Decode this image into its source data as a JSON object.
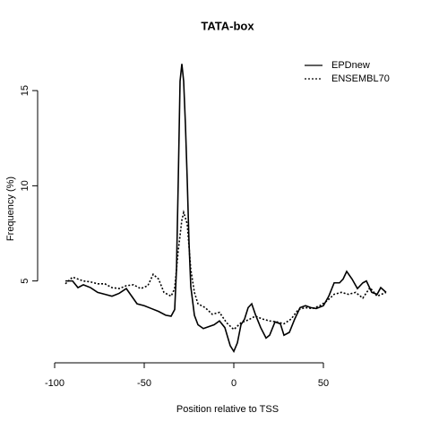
{
  "chart_data": {
    "type": "line",
    "title": "TATA-box",
    "xlabel": "Position relative to TSS",
    "ylabel": "Frequency (%)",
    "xlim": [
      -109.5,
      97
    ],
    "ylim": [
      0.7,
      16.7
    ],
    "xticks": [
      -100,
      -50,
      0,
      50
    ],
    "yticks": [
      5,
      10,
      15
    ],
    "legend": "top-right",
    "series": [
      {
        "name": "EPDnew",
        "color": "#000000",
        "linestyle": "solid",
        "x": [
          -94,
          -90,
          -87,
          -84,
          -80,
          -76,
          -72,
          -68,
          -64,
          -60,
          -57,
          -54,
          -50,
          -46,
          -42,
          -38,
          -35,
          -33,
          -32,
          -31,
          -30,
          -29,
          -28,
          -27,
          -26,
          -25,
          -24,
          -22,
          -20,
          -17,
          -14,
          -11,
          -8,
          -5,
          -2,
          0,
          2,
          4,
          6,
          8,
          10,
          12,
          15,
          18,
          20,
          23,
          26,
          28,
          31,
          34,
          37,
          40,
          43,
          46,
          50,
          53,
          56,
          59,
          61,
          63,
          66,
          69,
          72,
          74,
          77,
          80,
          82,
          85
        ],
        "values": [
          5.0,
          5.0,
          4.65,
          4.8,
          4.65,
          4.4,
          4.3,
          4.2,
          4.35,
          4.6,
          4.2,
          3.8,
          3.7,
          3.55,
          3.4,
          3.2,
          3.15,
          3.5,
          5.6,
          10.3,
          15.5,
          16.4,
          15.5,
          13.2,
          10.3,
          7.0,
          4.7,
          3.2,
          2.7,
          2.5,
          2.6,
          2.7,
          2.9,
          2.55,
          1.6,
          1.3,
          1.75,
          2.7,
          3.0,
          3.6,
          3.8,
          3.25,
          2.55,
          2.0,
          2.15,
          2.85,
          2.75,
          2.15,
          2.3,
          3.0,
          3.6,
          3.7,
          3.6,
          3.55,
          3.7,
          4.2,
          4.9,
          4.9,
          5.1,
          5.5,
          5.1,
          4.6,
          4.9,
          5.0,
          4.4,
          4.3,
          4.65,
          4.4
        ]
      },
      {
        "name": "ENSEMBL70",
        "color": "#000000",
        "linestyle": "dotted",
        "x": [
          -94,
          -90,
          -87,
          -84,
          -80,
          -76,
          -72,
          -68,
          -64,
          -60,
          -56,
          -52,
          -48,
          -45,
          -42,
          -39,
          -35,
          -33,
          -31,
          -29,
          -28,
          -26,
          -24,
          -22,
          -20,
          -16,
          -12,
          -8,
          -4,
          0,
          4,
          8,
          12,
          16,
          20,
          24,
          28,
          32,
          36,
          40,
          44,
          48,
          52,
          56,
          60,
          64,
          68,
          72,
          76,
          80,
          85
        ],
        "values": [
          4.85,
          5.2,
          5.1,
          5.0,
          4.95,
          4.85,
          4.85,
          4.65,
          4.6,
          4.75,
          4.8,
          4.6,
          4.75,
          5.35,
          5.1,
          4.4,
          4.2,
          4.6,
          6.6,
          8.2,
          8.6,
          8.0,
          5.6,
          4.4,
          3.8,
          3.6,
          3.25,
          3.35,
          2.8,
          2.45,
          2.8,
          2.95,
          3.15,
          3.0,
          2.9,
          2.85,
          2.75,
          3.0,
          3.5,
          3.6,
          3.55,
          3.7,
          3.95,
          4.3,
          4.4,
          4.3,
          4.4,
          4.1,
          4.65,
          4.2,
          4.4
        ]
      }
    ]
  }
}
